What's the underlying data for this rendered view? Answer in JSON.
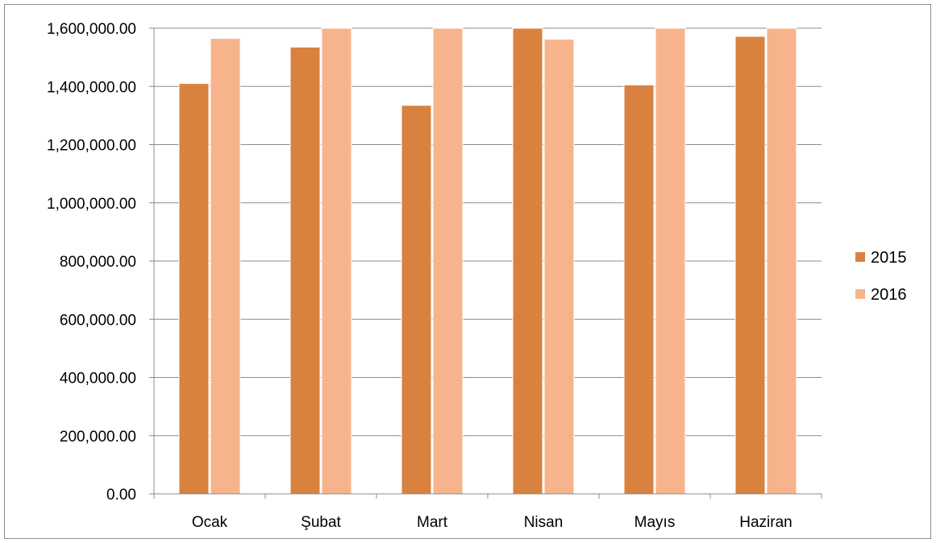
{
  "chart_data": {
    "type": "bar",
    "categories": [
      "Ocak",
      "Şubat",
      "Mart",
      "Nisan",
      "Mayıs",
      "Haziran"
    ],
    "series": [
      {
        "name": "2015",
        "values": [
          1410000,
          1535000,
          1335000,
          1600000,
          1405000,
          1572000
        ]
      },
      {
        "name": "2016",
        "values": [
          1565000,
          1600000,
          1600000,
          1562000,
          1600000,
          1600000
        ]
      }
    ],
    "ylim": [
      0,
      1600000
    ],
    "ytick_step": 200000,
    "ytick_labels": [
      "0.00",
      "200,000.00",
      "400,000.00",
      "600,000.00",
      "800,000.00",
      "1,000,000.00",
      "1,200,000.00",
      "1,400,000.00",
      "1,600,000.00"
    ],
    "title": "",
    "xlabel": "",
    "ylabel": "",
    "grid": true,
    "legend_position": "right",
    "colors": [
      "#d9823f",
      "#f7b48c"
    ]
  }
}
